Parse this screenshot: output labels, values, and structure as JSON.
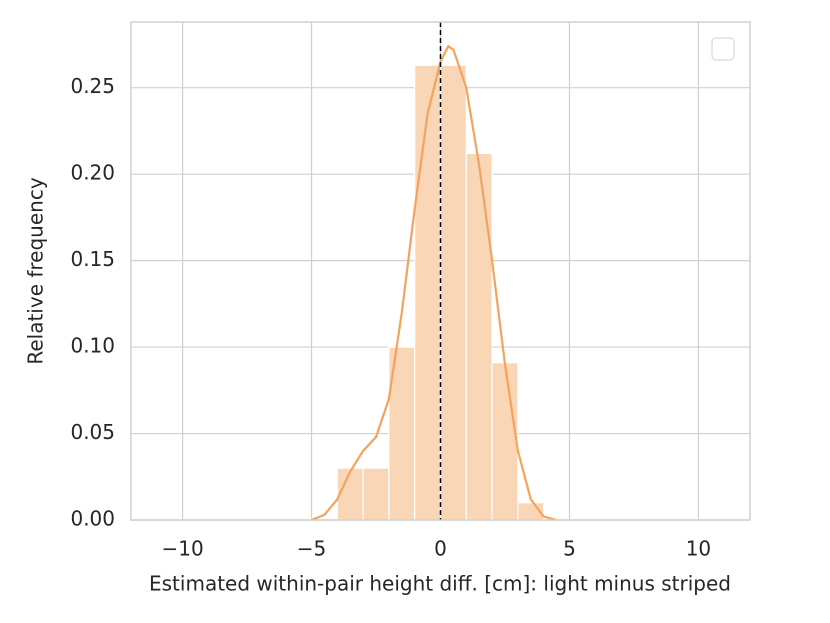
{
  "chart_data": {
    "type": "histogram",
    "xlabel": "Estimated within-pair height diff. [cm]: light minus striped",
    "ylabel": "Relative frequency",
    "bins": [
      -4,
      -3,
      -2,
      -1,
      0,
      1,
      2,
      3,
      4
    ],
    "values": [
      0.03,
      0.03,
      0.1,
      0.263,
      0.263,
      0.212,
      0.091,
      0.01
    ],
    "color": "#f9d6b5",
    "kde": {
      "color": "#f4a35c",
      "x": [
        -5,
        -4.5,
        -4,
        -3.5,
        -3,
        -2.5,
        -2,
        -1.5,
        -1,
        -0.5,
        0,
        0.3,
        0.5,
        1,
        1.5,
        2,
        2.5,
        3,
        3.5,
        4,
        4.5
      ],
      "y": [
        0,
        0.003,
        0.012,
        0.028,
        0.04,
        0.048,
        0.07,
        0.12,
        0.18,
        0.235,
        0.265,
        0.274,
        0.272,
        0.25,
        0.205,
        0.15,
        0.09,
        0.04,
        0.012,
        0.002,
        0
      ]
    },
    "vline": 0,
    "xlim": [
      -12,
      12
    ],
    "ylim": [
      0,
      0.288
    ],
    "xticks": [
      {
        "value": -10,
        "label": "−10"
      },
      {
        "value": -5,
        "label": "−5"
      },
      0,
      5,
      10
    ],
    "yticks": [
      {
        "value": 0,
        "label": "0.00"
      },
      {
        "value": 0.05,
        "label": "0.05"
      },
      {
        "value": 0.1,
        "label": "0.10"
      },
      {
        "value": 0.15,
        "label": "0.15"
      },
      {
        "value": 0.2,
        "label": "0.20"
      },
      {
        "value": 0.25,
        "label": "0.25"
      }
    ],
    "grid": true,
    "legend": "upper right"
  }
}
